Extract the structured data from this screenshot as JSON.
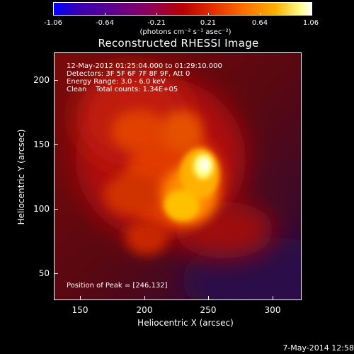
{
  "colorbar": {
    "ticks": [
      "-1.06",
      "-0.64",
      "-0.21",
      "0.21",
      "0.64",
      "1.06"
    ],
    "units": "(photons cm⁻² s⁻¹ asec⁻²)"
  },
  "title": "Reconstructed RHESSI Image",
  "info": {
    "line1": "12-May-2012 01:25:04.000 to 01:29:10.000",
    "line2": "Detectors: 3F 5F 6F 7F 8F 9F, Att 0",
    "line3": "Energy Range: 3.0 - 6.0 keV",
    "line4": "Clean    Total counts: 1.34E+05",
    "peak": "Position of Peak = [246,132]"
  },
  "axes": {
    "xlabel": "Heliocentric X (arcsec)",
    "ylabel": "Heliocentric Y (arcsec)",
    "xticks": [
      "150",
      "200",
      "250",
      "300"
    ],
    "yticks": [
      "200",
      "150",
      "100",
      "50"
    ]
  },
  "footer": {
    "timestamp": "7-May-2014 12:58"
  }
}
